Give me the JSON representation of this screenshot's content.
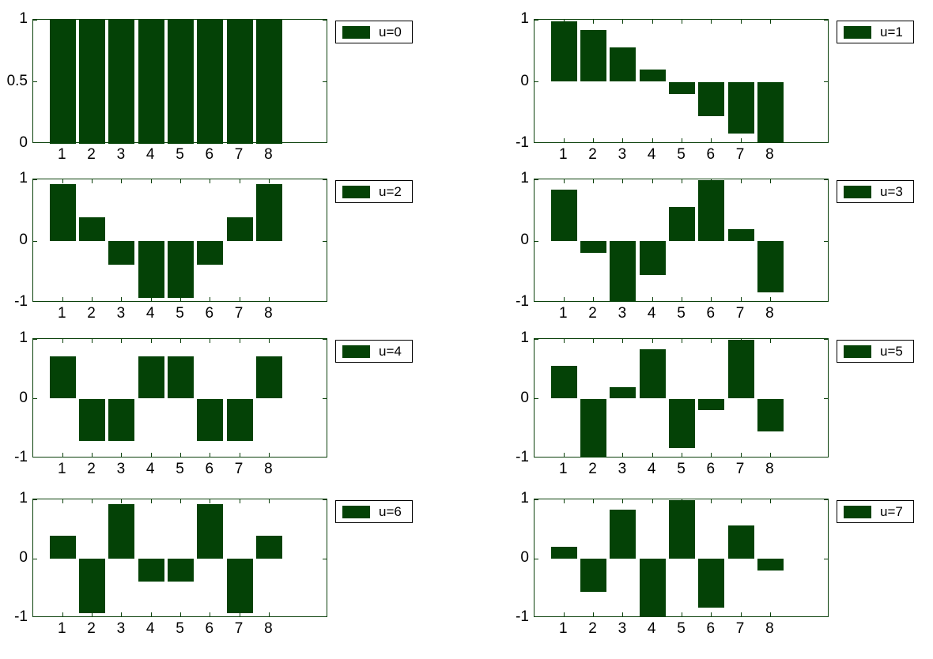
{
  "figure": {
    "grid_layout": "4 rows x 2 columns",
    "colors": {
      "bar_fill": "#044206",
      "axis_line": "#0A400A",
      "legend_border": "#000000",
      "label_text": "#000000",
      "background": "#FFFFFF"
    }
  },
  "chart_data": [
    {
      "type": "bar",
      "legend": "u=0",
      "x": [
        1,
        2,
        3,
        4,
        5,
        6,
        7,
        8
      ],
      "values": [
        1,
        1,
        1,
        1,
        1,
        1,
        1,
        1
      ],
      "xlim": [
        0,
        10
      ],
      "ylim": [
        0,
        1
      ],
      "xtick_labels": [
        "1",
        "2",
        "3",
        "4",
        "5",
        "6",
        "7",
        "8"
      ],
      "yticks": [
        {
          "value": 0,
          "label": "0"
        },
        {
          "value": 0.5,
          "label": "0.5"
        },
        {
          "value": 1,
          "label": "1"
        }
      ],
      "bar_width": 0.88,
      "grid": false,
      "legend_position": "outside-top-right"
    },
    {
      "type": "bar",
      "legend": "u=1",
      "x": [
        1,
        2,
        3,
        4,
        5,
        6,
        7,
        8
      ],
      "values": [
        0.9808,
        0.8315,
        0.5556,
        0.1951,
        -0.1951,
        -0.5556,
        -0.8315,
        -0.9808
      ],
      "xlim": [
        0,
        10
      ],
      "ylim": [
        -1,
        1
      ],
      "xtick_labels": [
        "1",
        "2",
        "3",
        "4",
        "5",
        "6",
        "7",
        "8"
      ],
      "yticks": [
        {
          "value": -1,
          "label": "-1"
        },
        {
          "value": 0,
          "label": "0"
        },
        {
          "value": 1,
          "label": "1"
        }
      ],
      "bar_width": 0.88,
      "grid": false,
      "legend_position": "outside-top-right"
    },
    {
      "type": "bar",
      "legend": "u=2",
      "x": [
        1,
        2,
        3,
        4,
        5,
        6,
        7,
        8
      ],
      "values": [
        0.9239,
        0.3827,
        -0.3827,
        -0.9239,
        -0.9239,
        -0.3827,
        0.3827,
        0.9239
      ],
      "xlim": [
        0,
        10
      ],
      "ylim": [
        -1,
        1
      ],
      "xtick_labels": [
        "1",
        "2",
        "3",
        "4",
        "5",
        "6",
        "7",
        "8"
      ],
      "yticks": [
        {
          "value": -1,
          "label": "-1"
        },
        {
          "value": 0,
          "label": "0"
        },
        {
          "value": 1,
          "label": "1"
        }
      ],
      "bar_width": 0.88,
      "grid": false,
      "legend_position": "outside-top-right"
    },
    {
      "type": "bar",
      "legend": "u=3",
      "x": [
        1,
        2,
        3,
        4,
        5,
        6,
        7,
        8
      ],
      "values": [
        0.8315,
        -0.1951,
        -0.9808,
        -0.5556,
        0.5556,
        0.9808,
        0.1951,
        -0.8315
      ],
      "xlim": [
        0,
        10
      ],
      "ylim": [
        -1,
        1
      ],
      "xtick_labels": [
        "1",
        "2",
        "3",
        "4",
        "5",
        "6",
        "7",
        "8"
      ],
      "yticks": [
        {
          "value": -1,
          "label": "-1"
        },
        {
          "value": 0,
          "label": "0"
        },
        {
          "value": 1,
          "label": "1"
        }
      ],
      "bar_width": 0.88,
      "grid": false,
      "legend_position": "outside-top-right"
    },
    {
      "type": "bar",
      "legend": "u=4",
      "x": [
        1,
        2,
        3,
        4,
        5,
        6,
        7,
        8
      ],
      "values": [
        0.7071,
        -0.7071,
        -0.7071,
        0.7071,
        0.7071,
        -0.7071,
        -0.7071,
        0.7071
      ],
      "xlim": [
        0,
        10
      ],
      "ylim": [
        -1,
        1
      ],
      "xtick_labels": [
        "1",
        "2",
        "3",
        "4",
        "5",
        "6",
        "7",
        "8"
      ],
      "yticks": [
        {
          "value": -1,
          "label": "-1"
        },
        {
          "value": 0,
          "label": "0"
        },
        {
          "value": 1,
          "label": "1"
        }
      ],
      "bar_width": 0.88,
      "grid": false,
      "legend_position": "outside-top-right"
    },
    {
      "type": "bar",
      "legend": "u=5",
      "x": [
        1,
        2,
        3,
        4,
        5,
        6,
        7,
        8
      ],
      "values": [
        0.5556,
        -0.9808,
        0.1951,
        0.8315,
        -0.8315,
        -0.1951,
        0.9808,
        -0.5556
      ],
      "xlim": [
        0,
        10
      ],
      "ylim": [
        -1,
        1
      ],
      "xtick_labels": [
        "1",
        "2",
        "3",
        "4",
        "5",
        "6",
        "7",
        "8"
      ],
      "yticks": [
        {
          "value": -1,
          "label": "-1"
        },
        {
          "value": 0,
          "label": "0"
        },
        {
          "value": 1,
          "label": "1"
        }
      ],
      "bar_width": 0.88,
      "grid": false,
      "legend_position": "outside-top-right"
    },
    {
      "type": "bar",
      "legend": "u=6",
      "x": [
        1,
        2,
        3,
        4,
        5,
        6,
        7,
        8
      ],
      "values": [
        0.3827,
        -0.9239,
        0.9239,
        -0.3827,
        -0.3827,
        0.9239,
        -0.9239,
        0.3827
      ],
      "xlim": [
        0,
        10
      ],
      "ylim": [
        -1,
        1
      ],
      "xtick_labels": [
        "1",
        "2",
        "3",
        "4",
        "5",
        "6",
        "7",
        "8"
      ],
      "yticks": [
        {
          "value": -1,
          "label": "-1"
        },
        {
          "value": 0,
          "label": "0"
        },
        {
          "value": 1,
          "label": "1"
        }
      ],
      "bar_width": 0.88,
      "grid": false,
      "legend_position": "outside-top-right"
    },
    {
      "type": "bar",
      "legend": "u=7",
      "x": [
        1,
        2,
        3,
        4,
        5,
        6,
        7,
        8
      ],
      "values": [
        0.1951,
        -0.5556,
        0.8315,
        -0.9808,
        0.9808,
        -0.8315,
        0.5556,
        -0.1951
      ],
      "xlim": [
        0,
        10
      ],
      "ylim": [
        -1,
        1
      ],
      "xtick_labels": [
        "1",
        "2",
        "3",
        "4",
        "5",
        "6",
        "7",
        "8"
      ],
      "yticks": [
        {
          "value": -1,
          "label": "-1"
        },
        {
          "value": 0,
          "label": "0"
        },
        {
          "value": 1,
          "label": "1"
        }
      ],
      "bar_width": 0.88,
      "grid": false,
      "legend_position": "outside-top-right"
    }
  ]
}
